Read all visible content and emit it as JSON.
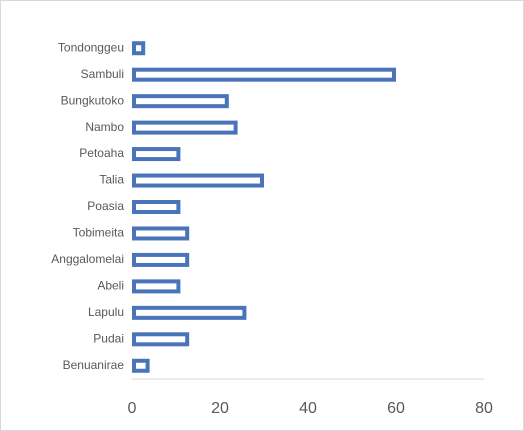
{
  "chart_data": {
    "type": "bar",
    "orientation": "horizontal",
    "categories": [
      "Tondonggeu",
      "Sambuli",
      "Bungkutoko",
      "Nambo",
      "Petoaha",
      "Talia",
      "Poasia",
      "Tobimeita",
      "Anggalomelai",
      "Abeli",
      "Lapulu",
      "Pudai",
      "Benuanirae"
    ],
    "values": [
      3,
      60,
      22,
      24,
      11,
      30,
      11,
      13,
      13,
      11,
      26,
      13,
      4
    ],
    "color": "#4a74b9",
    "xlim": [
      0,
      80
    ],
    "xticks": [
      0,
      20,
      40,
      60,
      80
    ],
    "grid": false
  }
}
